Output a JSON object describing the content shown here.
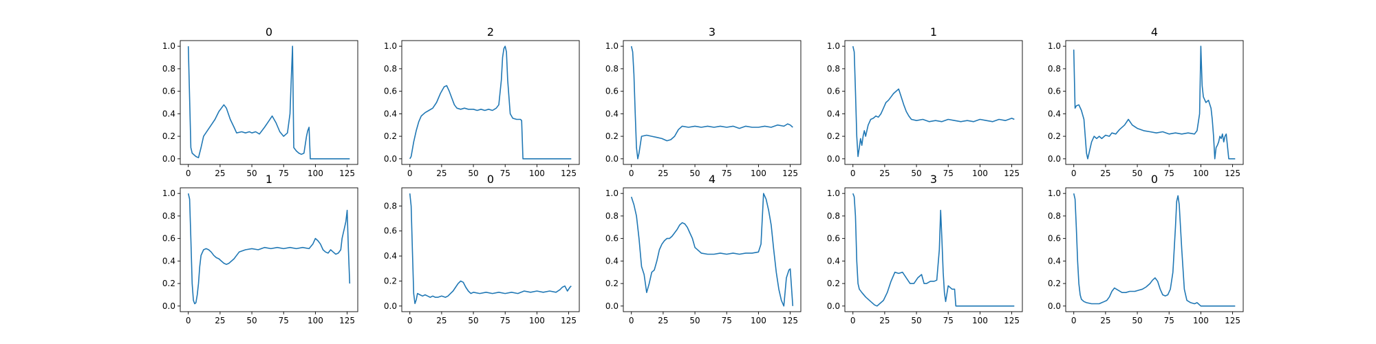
{
  "chart_data": [
    {
      "type": "line",
      "title": "0",
      "xlim": [
        -6.35,
        133.35
      ],
      "ylim": [
        -0.05,
        1.05
      ],
      "xticks": [
        0,
        25,
        50,
        75,
        100,
        125
      ],
      "yticks": [
        0.0,
        0.2,
        0.4,
        0.6,
        0.8,
        1.0
      ],
      "x": [
        0,
        2,
        3,
        6,
        8,
        10,
        12,
        15,
        18,
        21,
        24,
        28,
        30,
        33,
        36,
        38,
        42,
        45,
        48,
        50,
        53,
        56,
        58,
        60,
        63,
        66,
        69,
        72,
        75,
        78,
        80,
        81,
        82,
        83,
        85,
        87,
        89,
        91,
        93,
        94,
        95,
        96,
        100,
        110,
        120,
        127
      ],
      "y": [
        1.0,
        0.1,
        0.05,
        0.02,
        0.01,
        0.1,
        0.2,
        0.25,
        0.3,
        0.35,
        0.42,
        0.48,
        0.45,
        0.35,
        0.28,
        0.23,
        0.24,
        0.23,
        0.24,
        0.23,
        0.24,
        0.22,
        0.25,
        0.28,
        0.33,
        0.38,
        0.32,
        0.24,
        0.2,
        0.23,
        0.4,
        0.7,
        1.0,
        0.1,
        0.07,
        0.05,
        0.04,
        0.05,
        0.2,
        0.25,
        0.28,
        0.0,
        0.0,
        0.0,
        0.0,
        0.0
      ]
    },
    {
      "type": "line",
      "title": "2",
      "xlim": [
        -6.35,
        133.35
      ],
      "ylim": [
        -0.05,
        1.05
      ],
      "xticks": [
        0,
        25,
        50,
        75,
        100,
        125
      ],
      "yticks": [
        0.0,
        0.2,
        0.4,
        0.6,
        0.8,
        1.0
      ],
      "x": [
        0,
        1,
        3,
        5,
        7,
        9,
        12,
        15,
        18,
        21,
        24,
        27,
        29,
        31,
        33,
        35,
        37,
        40,
        43,
        46,
        50,
        53,
        56,
        59,
        62,
        65,
        68,
        70,
        72,
        73,
        74,
        75,
        76,
        77,
        79,
        81,
        84,
        87,
        88,
        89,
        100,
        127
      ],
      "y": [
        0.0,
        0.02,
        0.15,
        0.25,
        0.33,
        0.38,
        0.41,
        0.43,
        0.45,
        0.5,
        0.58,
        0.64,
        0.65,
        0.6,
        0.54,
        0.48,
        0.45,
        0.44,
        0.45,
        0.44,
        0.44,
        0.43,
        0.44,
        0.43,
        0.44,
        0.43,
        0.45,
        0.48,
        0.7,
        0.9,
        0.98,
        1.0,
        0.95,
        0.7,
        0.4,
        0.36,
        0.35,
        0.35,
        0.34,
        0.0,
        0.0,
        0.0
      ]
    },
    {
      "type": "line",
      "title": "3",
      "xlim": [
        -6.35,
        133.35
      ],
      "ylim": [
        -0.05,
        1.05
      ],
      "xticks": [
        0,
        25,
        50,
        75,
        100,
        125
      ],
      "yticks": [
        0.0,
        0.2,
        0.4,
        0.6,
        0.8,
        1.0
      ],
      "x": [
        0,
        1,
        2,
        3,
        4,
        5,
        6,
        8,
        12,
        16,
        20,
        24,
        28,
        31,
        34,
        37,
        40,
        45,
        50,
        55,
        60,
        65,
        70,
        75,
        80,
        85,
        90,
        95,
        100,
        105,
        110,
        115,
        120,
        123,
        125,
        127
      ],
      "y": [
        1.0,
        0.95,
        0.75,
        0.4,
        0.1,
        0.0,
        0.05,
        0.2,
        0.21,
        0.2,
        0.19,
        0.18,
        0.16,
        0.17,
        0.2,
        0.26,
        0.29,
        0.28,
        0.29,
        0.28,
        0.29,
        0.28,
        0.29,
        0.28,
        0.29,
        0.27,
        0.29,
        0.28,
        0.28,
        0.29,
        0.28,
        0.3,
        0.29,
        0.31,
        0.3,
        0.28
      ]
    },
    {
      "type": "line",
      "title": "1",
      "xlim": [
        -6.35,
        133.35
      ],
      "ylim": [
        -0.05,
        1.05
      ],
      "xticks": [
        0,
        25,
        50,
        75,
        100,
        125
      ],
      "yticks": [
        0.0,
        0.2,
        0.4,
        0.6,
        0.8,
        1.0
      ],
      "x": [
        0,
        1,
        2,
        3,
        4,
        5,
        6,
        7,
        8,
        9,
        10,
        11,
        12,
        14,
        16,
        18,
        20,
        22,
        24,
        26,
        28,
        30,
        32,
        34,
        36,
        38,
        40,
        42,
        44,
        46,
        50,
        55,
        60,
        65,
        70,
        75,
        80,
        85,
        90,
        95,
        100,
        105,
        110,
        115,
        120,
        125,
        127
      ],
      "y": [
        1.0,
        0.95,
        0.6,
        0.2,
        0.02,
        0.1,
        0.18,
        0.12,
        0.2,
        0.25,
        0.2,
        0.25,
        0.3,
        0.35,
        0.36,
        0.38,
        0.37,
        0.4,
        0.45,
        0.5,
        0.52,
        0.55,
        0.58,
        0.6,
        0.62,
        0.55,
        0.48,
        0.42,
        0.38,
        0.35,
        0.34,
        0.35,
        0.33,
        0.34,
        0.33,
        0.35,
        0.34,
        0.33,
        0.34,
        0.33,
        0.35,
        0.34,
        0.33,
        0.35,
        0.34,
        0.36,
        0.35
      ]
    },
    {
      "type": "line",
      "title": "4",
      "xlim": [
        -6.35,
        133.35
      ],
      "ylim": [
        -0.05,
        1.05
      ],
      "xticks": [
        0,
        25,
        50,
        75,
        100,
        125
      ],
      "yticks": [
        0.0,
        0.2,
        0.4,
        0.6,
        0.8,
        1.0
      ],
      "x": [
        0,
        1,
        2,
        4,
        6,
        8,
        10,
        11,
        12,
        14,
        16,
        18,
        20,
        22,
        25,
        28,
        30,
        33,
        36,
        40,
        43,
        46,
        50,
        55,
        60,
        65,
        70,
        75,
        80,
        85,
        90,
        95,
        97,
        99,
        100,
        101,
        102,
        104,
        106,
        108,
        109,
        110,
        111,
        112,
        113,
        114,
        115,
        116,
        117,
        118,
        119,
        120,
        122,
        124,
        127
      ],
      "y": [
        0.97,
        0.45,
        0.47,
        0.48,
        0.43,
        0.35,
        0.05,
        0.0,
        0.05,
        0.15,
        0.2,
        0.18,
        0.2,
        0.18,
        0.21,
        0.2,
        0.23,
        0.22,
        0.26,
        0.3,
        0.35,
        0.3,
        0.27,
        0.25,
        0.24,
        0.23,
        0.24,
        0.22,
        0.23,
        0.22,
        0.23,
        0.22,
        0.25,
        0.4,
        1.0,
        0.65,
        0.55,
        0.5,
        0.52,
        0.45,
        0.35,
        0.2,
        0.0,
        0.1,
        0.12,
        0.15,
        0.2,
        0.18,
        0.22,
        0.15,
        0.2,
        0.22,
        0.0,
        0.0,
        0.0
      ]
    },
    {
      "type": "line",
      "title": "1",
      "xlim": [
        -6.35,
        133.35
      ],
      "ylim": [
        -0.05,
        1.05
      ],
      "xticks": [
        0,
        25,
        50,
        75,
        100,
        125
      ],
      "yticks": [
        0.0,
        0.2,
        0.4,
        0.6,
        0.8,
        1.0
      ],
      "x": [
        0,
        1,
        2,
        3,
        4,
        5,
        6,
        7,
        8,
        9,
        10,
        12,
        14,
        16,
        18,
        20,
        22,
        24,
        26,
        28,
        30,
        32,
        34,
        36,
        38,
        40,
        45,
        50,
        55,
        60,
        65,
        70,
        75,
        80,
        85,
        90,
        95,
        98,
        100,
        102,
        104,
        106,
        108,
        110,
        112,
        114,
        116,
        118,
        120,
        121,
        122,
        123,
        124,
        125,
        126,
        127
      ],
      "y": [
        1.0,
        0.95,
        0.6,
        0.2,
        0.05,
        0.02,
        0.03,
        0.1,
        0.2,
        0.35,
        0.45,
        0.5,
        0.51,
        0.5,
        0.48,
        0.45,
        0.43,
        0.42,
        0.4,
        0.38,
        0.37,
        0.38,
        0.4,
        0.42,
        0.45,
        0.48,
        0.5,
        0.51,
        0.5,
        0.52,
        0.51,
        0.52,
        0.51,
        0.52,
        0.51,
        0.52,
        0.51,
        0.55,
        0.6,
        0.58,
        0.55,
        0.5,
        0.48,
        0.47,
        0.5,
        0.48,
        0.46,
        0.47,
        0.5,
        0.6,
        0.65,
        0.7,
        0.75,
        0.85,
        0.5,
        0.2
      ]
    },
    {
      "type": "line",
      "title": "0",
      "xlim": [
        -6.35,
        133.35
      ],
      "ylim": [
        -0.045,
        0.945
      ],
      "xticks": [
        0,
        25,
        50,
        75,
        100,
        125
      ],
      "yticks": [
        0.0,
        0.2,
        0.4,
        0.6,
        0.8
      ],
      "x": [
        0,
        1,
        2,
        3,
        4,
        5,
        6,
        8,
        10,
        12,
        14,
        16,
        18,
        20,
        22,
        25,
        28,
        30,
        32,
        34,
        36,
        38,
        40,
        42,
        44,
        46,
        48,
        50,
        55,
        60,
        65,
        70,
        75,
        80,
        85,
        90,
        95,
        100,
        105,
        110,
        115,
        118,
        120,
        122,
        124,
        126,
        127
      ],
      "y": [
        0.9,
        0.8,
        0.45,
        0.1,
        0.02,
        0.05,
        0.1,
        0.09,
        0.08,
        0.09,
        0.08,
        0.07,
        0.08,
        0.07,
        0.07,
        0.08,
        0.07,
        0.08,
        0.1,
        0.12,
        0.15,
        0.18,
        0.2,
        0.19,
        0.15,
        0.12,
        0.1,
        0.11,
        0.1,
        0.11,
        0.1,
        0.11,
        0.1,
        0.11,
        0.1,
        0.12,
        0.11,
        0.12,
        0.11,
        0.12,
        0.11,
        0.13,
        0.15,
        0.16,
        0.12,
        0.15,
        0.16
      ]
    },
    {
      "type": "line",
      "title": "4",
      "xlim": [
        -6.35,
        133.35
      ],
      "ylim": [
        -0.05,
        1.05
      ],
      "xticks": [
        0,
        25,
        50,
        75,
        100,
        125
      ],
      "yticks": [
        0.0,
        0.2,
        0.4,
        0.6,
        0.8,
        1.0
      ],
      "x": [
        0,
        2,
        4,
        6,
        8,
        10,
        12,
        14,
        16,
        18,
        20,
        22,
        24,
        26,
        28,
        30,
        32,
        34,
        36,
        38,
        40,
        42,
        44,
        46,
        48,
        50,
        55,
        60,
        65,
        70,
        75,
        80,
        85,
        90,
        95,
        100,
        102,
        104,
        106,
        108,
        110,
        112,
        114,
        116,
        118,
        120,
        122,
        124,
        125,
        127
      ],
      "y": [
        0.97,
        0.9,
        0.8,
        0.6,
        0.35,
        0.28,
        0.12,
        0.2,
        0.3,
        0.32,
        0.4,
        0.5,
        0.55,
        0.58,
        0.6,
        0.6,
        0.62,
        0.65,
        0.68,
        0.72,
        0.74,
        0.73,
        0.7,
        0.65,
        0.6,
        0.52,
        0.47,
        0.46,
        0.46,
        0.47,
        0.46,
        0.47,
        0.46,
        0.47,
        0.47,
        0.48,
        0.55,
        1.0,
        0.95,
        0.85,
        0.72,
        0.5,
        0.3,
        0.15,
        0.05,
        0.0,
        0.25,
        0.32,
        0.33,
        0.0
      ]
    },
    {
      "type": "line",
      "title": "3",
      "xlim": [
        -6.35,
        133.35
      ],
      "ylim": [
        -0.05,
        1.05
      ],
      "xticks": [
        0,
        25,
        50,
        75,
        100,
        125
      ],
      "yticks": [
        0.0,
        0.2,
        0.4,
        0.6,
        0.8,
        1.0
      ],
      "x": [
        0,
        1,
        2,
        3,
        4,
        5,
        7,
        10,
        14,
        17,
        19,
        21,
        24,
        27,
        30,
        33,
        36,
        39,
        42,
        45,
        48,
        51,
        54,
        56,
        58,
        61,
        64,
        66,
        68,
        69,
        70,
        71,
        72,
        73,
        75,
        78,
        80,
        81,
        83,
        90,
        100,
        110,
        120,
        127
      ],
      "y": [
        1.0,
        0.97,
        0.8,
        0.4,
        0.2,
        0.15,
        0.12,
        0.08,
        0.04,
        0.01,
        0.0,
        0.02,
        0.05,
        0.12,
        0.22,
        0.3,
        0.29,
        0.3,
        0.25,
        0.2,
        0.2,
        0.25,
        0.28,
        0.2,
        0.2,
        0.22,
        0.22,
        0.23,
        0.5,
        0.85,
        0.6,
        0.3,
        0.12,
        0.04,
        0.18,
        0.15,
        0.15,
        0.0,
        0.0,
        0.0,
        0.0,
        0.0,
        0.0,
        0.0
      ]
    },
    {
      "type": "line",
      "title": "0",
      "xlim": [
        -6.35,
        133.35
      ],
      "ylim": [
        -0.05,
        1.05
      ],
      "xticks": [
        0,
        25,
        50,
        75,
        100,
        125
      ],
      "yticks": [
        0.0,
        0.2,
        0.4,
        0.6,
        0.8,
        1.0
      ],
      "x": [
        0,
        1,
        2,
        3,
        4,
        5,
        6,
        8,
        10,
        14,
        18,
        20,
        22,
        24,
        26,
        28,
        30,
        32,
        35,
        38,
        41,
        44,
        48,
        51,
        54,
        57,
        60,
        62,
        64,
        66,
        68,
        70,
        72,
        74,
        76,
        78,
        80,
        81,
        82,
        83,
        85,
        87,
        89,
        92,
        95,
        97,
        100,
        110,
        120,
        127
      ],
      "y": [
        1.0,
        0.95,
        0.7,
        0.4,
        0.2,
        0.1,
        0.06,
        0.04,
        0.03,
        0.02,
        0.02,
        0.02,
        0.03,
        0.04,
        0.05,
        0.08,
        0.13,
        0.16,
        0.14,
        0.12,
        0.12,
        0.13,
        0.13,
        0.14,
        0.15,
        0.17,
        0.2,
        0.23,
        0.25,
        0.22,
        0.15,
        0.1,
        0.09,
        0.1,
        0.15,
        0.3,
        0.7,
        0.93,
        0.98,
        0.9,
        0.5,
        0.15,
        0.05,
        0.03,
        0.02,
        0.03,
        0.0,
        0.0,
        0.0,
        0.0
      ]
    }
  ]
}
